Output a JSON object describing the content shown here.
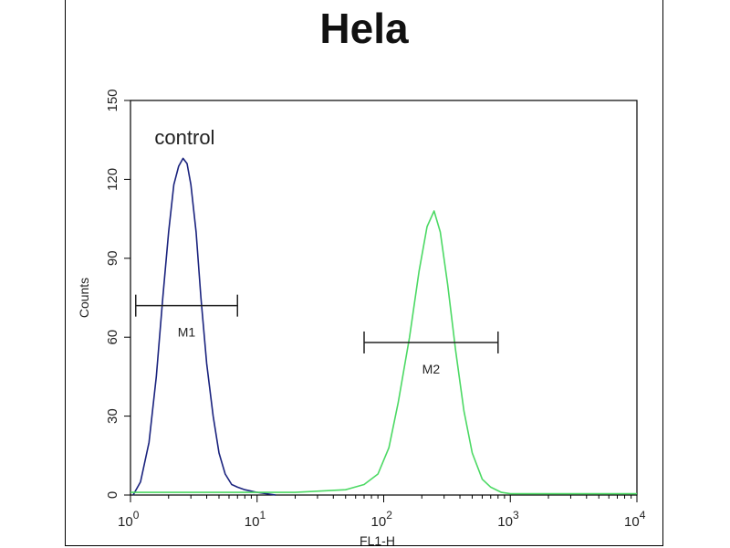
{
  "chart_data": {
    "type": "line",
    "title": "Hela",
    "xlabel": "FL1-H",
    "ylabel": "Counts",
    "x_scale": "log",
    "xlim": [
      1,
      10000
    ],
    "ylim": [
      0,
      150
    ],
    "y_ticks": [
      "0",
      "30",
      "60",
      "90",
      "120",
      "150"
    ],
    "x_ticks": [
      {
        "value": 1,
        "base": "10",
        "exp": "0"
      },
      {
        "value": 10,
        "base": "10",
        "exp": "1"
      },
      {
        "value": 100,
        "base": "10",
        "exp": "2"
      },
      {
        "value": 1000,
        "base": "10",
        "exp": "3"
      },
      {
        "value": 10000,
        "base": "10",
        "exp": "4"
      }
    ],
    "annotation": "control",
    "series": [
      {
        "color": "#1a237e",
        "x": [
          1.05,
          1.2,
          1.4,
          1.6,
          1.8,
          2.0,
          2.2,
          2.4,
          2.6,
          2.8,
          3.0,
          3.3,
          3.6,
          4.0,
          4.5,
          5.0,
          5.6,
          6.3,
          7.0,
          8.0,
          10.0,
          14.0
        ],
        "y": [
          0,
          5,
          20,
          45,
          75,
          100,
          118,
          125,
          128,
          126,
          118,
          100,
          75,
          50,
          30,
          16,
          8,
          4,
          3,
          2,
          1,
          0
        ]
      },
      {
        "color": "#4cd964",
        "x": [
          1,
          20,
          50,
          70,
          90,
          110,
          130,
          160,
          190,
          220,
          250,
          280,
          320,
          370,
          430,
          500,
          600,
          700,
          850,
          1000,
          10000
        ],
        "y": [
          1,
          1,
          2,
          4,
          8,
          18,
          35,
          60,
          85,
          102,
          108,
          100,
          80,
          55,
          32,
          16,
          6,
          3,
          1,
          0.5,
          0.5
        ]
      }
    ],
    "gates": [
      {
        "label": "M1",
        "x_start": 1.1,
        "x_end": 7.0,
        "y": 72
      },
      {
        "label": "M2",
        "x_start": 70,
        "x_end": 800,
        "y": 58
      }
    ]
  }
}
